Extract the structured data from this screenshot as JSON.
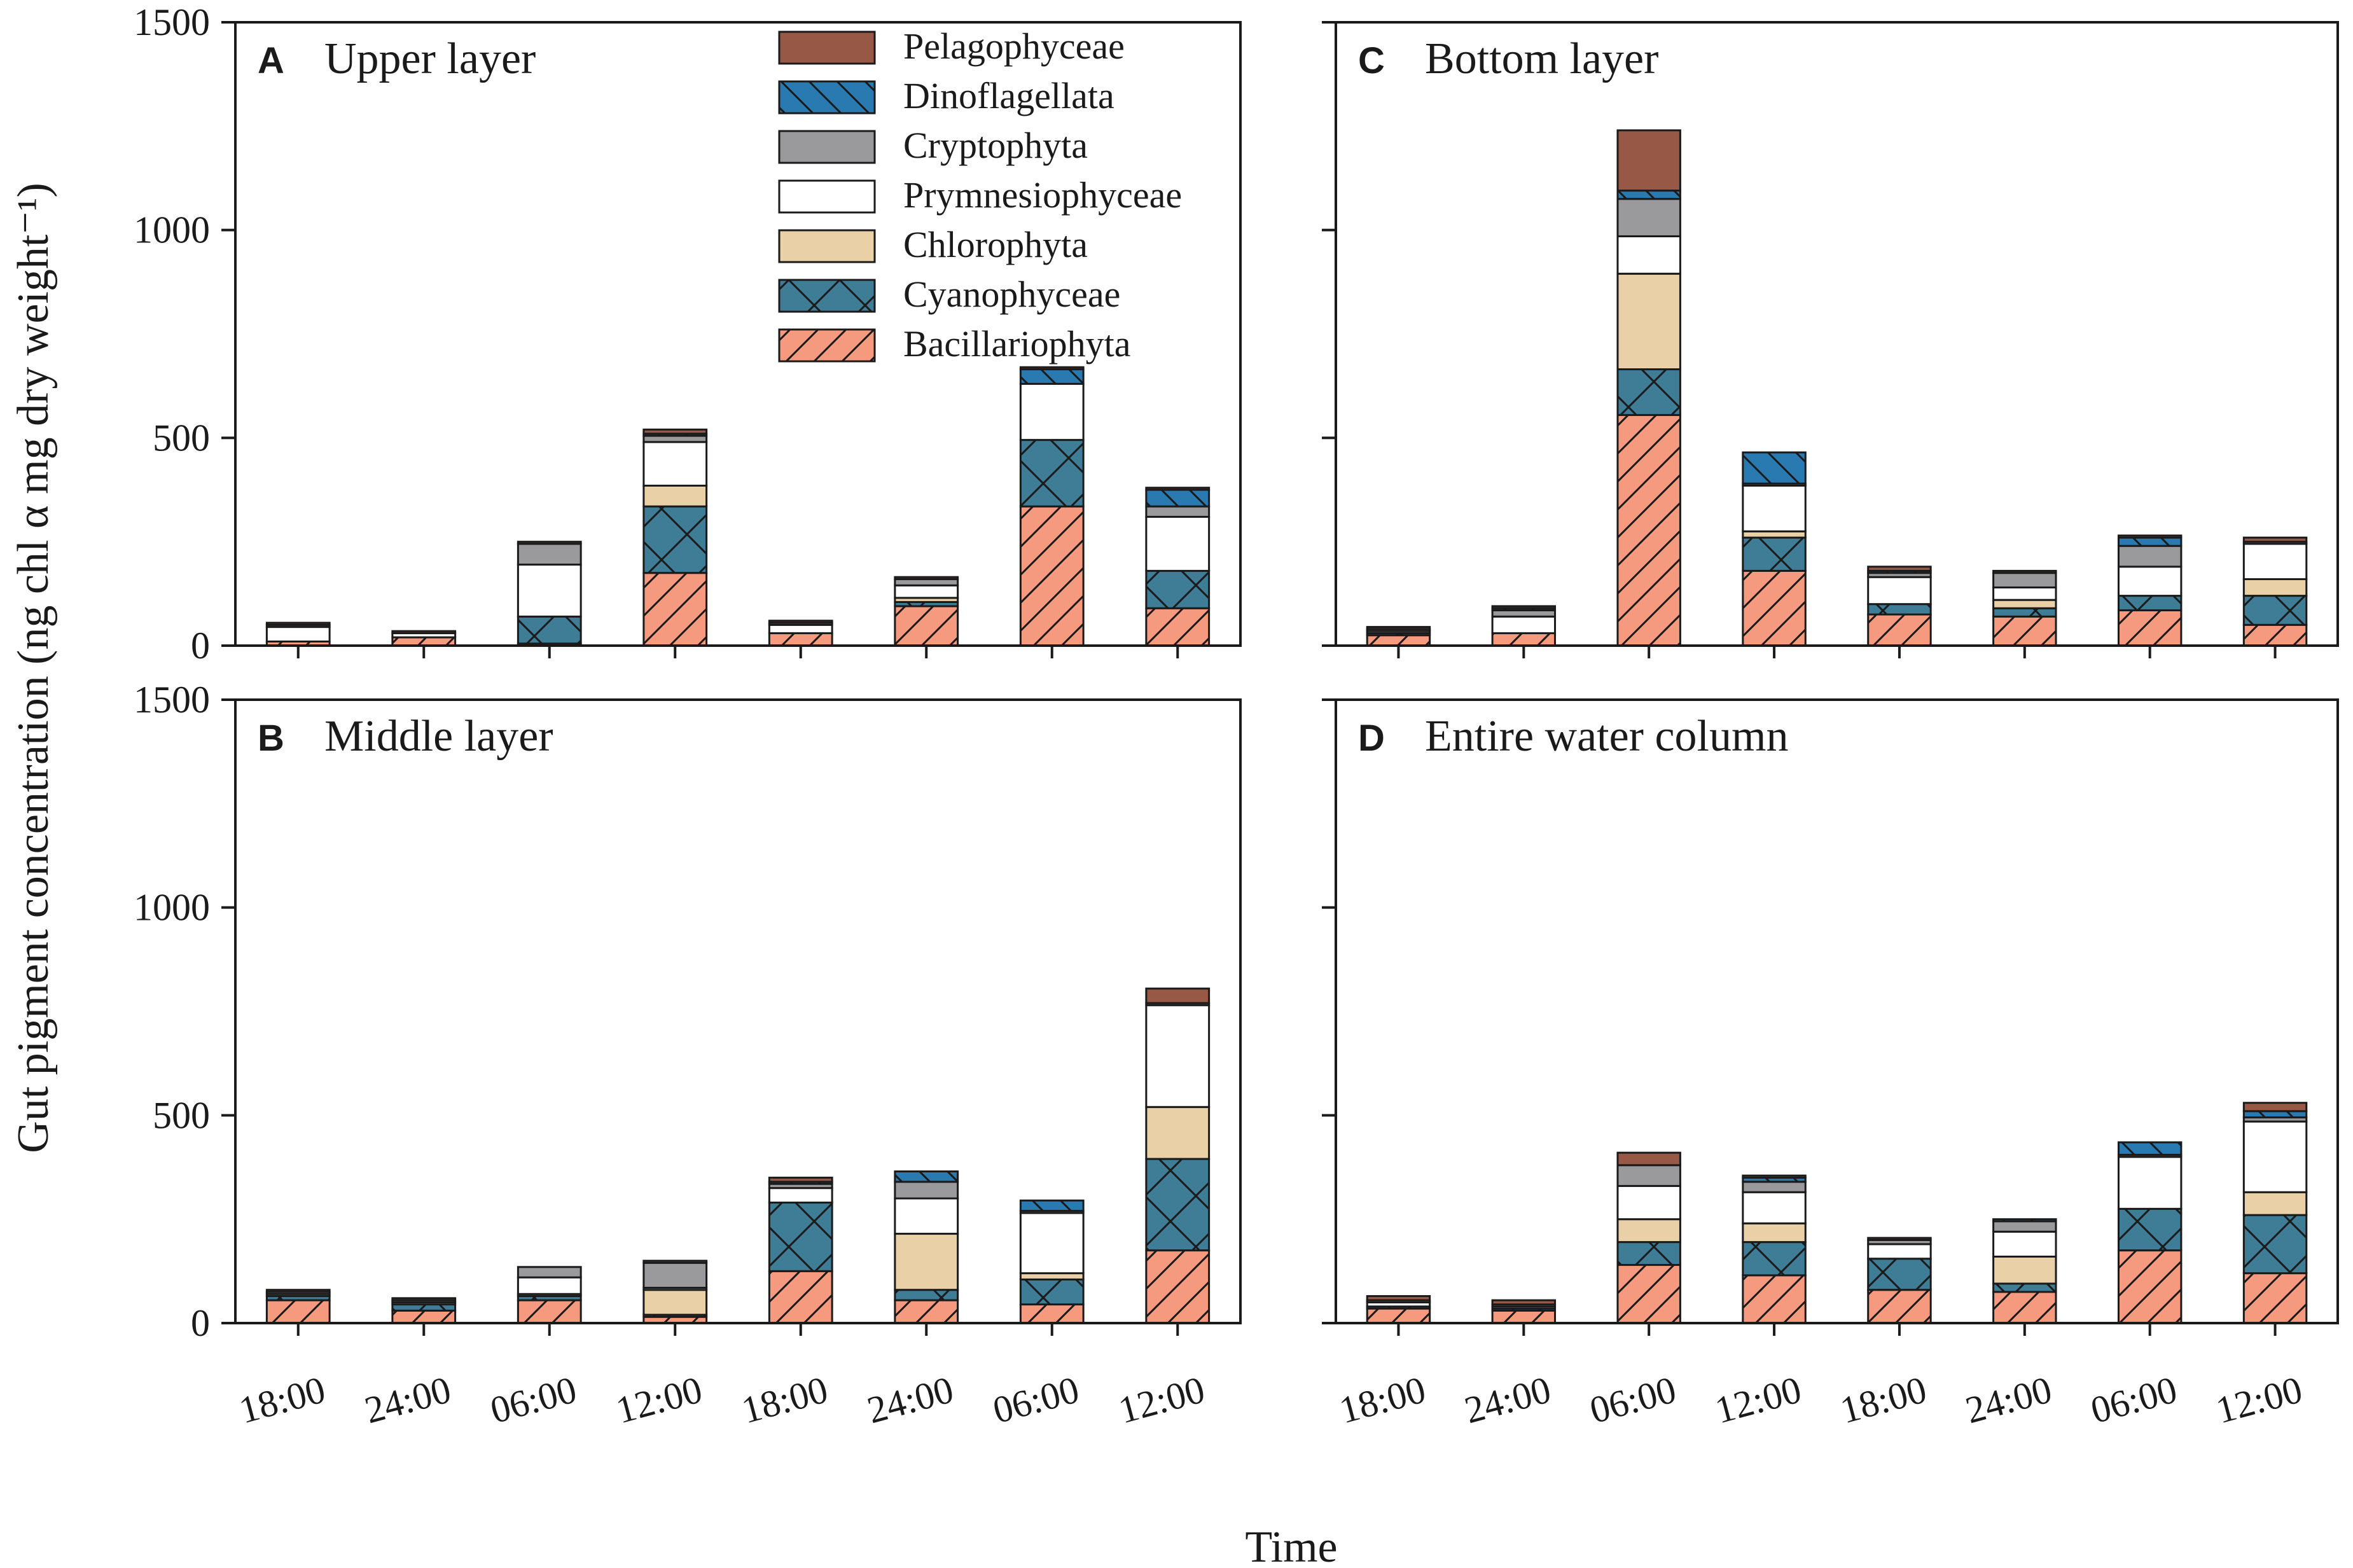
{
  "chart_data": {
    "type": "stacked-bar",
    "ylabel": "Gut pigment concentration (ng chl α mg dry weight⁻¹)",
    "xlabel": "Time",
    "ylim": [
      0,
      1500
    ],
    "yticks": [
      0,
      500,
      1000,
      1500
    ],
    "categories": [
      "18:00",
      "24:00",
      "06:00",
      "12:00",
      "18:00",
      "24:00",
      "06:00",
      "12:00"
    ],
    "series_names": [
      "Bacillariophyta",
      "Cyanophyceae",
      "Chlorophyta",
      "Prymnesiophyceae",
      "Cryptophyta",
      "Dinoflagellata",
      "Pelagophyceae"
    ],
    "legend_order": [
      "Pelagophyceae",
      "Dinoflagellata",
      "Cryptophyta",
      "Prymnesiophyceae",
      "Chlorophyta",
      "Cyanophyceae",
      "Bacillariophyta"
    ],
    "colors": {
      "Bacillariophyta": "#f59a7e",
      "Cyanophyceae": "#3f7c96",
      "Chlorophyta": "#ead0a6",
      "Prymnesiophyceae": "#ffffff",
      "Cryptophyta": "#9a9a9c",
      "Dinoflagellata": "#2a7ab2",
      "Pelagophyceae": "#975846"
    },
    "panels": [
      {
        "letter": "A",
        "title": "Upper layer",
        "series": [
          {
            "name": "Bacillariophyta",
            "values": [
              10,
              20,
              5,
              175,
              30,
              95,
              335,
              90
            ]
          },
          {
            "name": "Cyanophyceae",
            "values": [
              0,
              0,
              65,
              160,
              0,
              10,
              160,
              90
            ]
          },
          {
            "name": "Chlorophyta",
            "values": [
              0,
              0,
              0,
              50,
              0,
              10,
              0,
              0
            ]
          },
          {
            "name": "Prymnesiophyceae",
            "values": [
              35,
              10,
              125,
              105,
              20,
              30,
              135,
              130
            ]
          },
          {
            "name": "Cryptophyta",
            "values": [
              5,
              0,
              50,
              15,
              5,
              15,
              0,
              25
            ]
          },
          {
            "name": "Dinoflagellata",
            "values": [
              0,
              0,
              0,
              5,
              0,
              0,
              35,
              40
            ]
          },
          {
            "name": "Pelagophyceae",
            "values": [
              5,
              5,
              5,
              10,
              5,
              5,
              5,
              5
            ]
          }
        ]
      },
      {
        "letter": "B",
        "title": "Middle layer",
        "series": [
          {
            "name": "Bacillariophyta",
            "values": [
              55,
              30,
              55,
              15,
              125,
              55,
              45,
              175
            ]
          },
          {
            "name": "Cyanophyceae",
            "values": [
              10,
              15,
              10,
              5,
              165,
              25,
              60,
              220
            ]
          },
          {
            "name": "Chlorophyta",
            "values": [
              0,
              0,
              5,
              60,
              0,
              135,
              15,
              125
            ]
          },
          {
            "name": "Prymnesiophyceae",
            "values": [
              5,
              5,
              40,
              5,
              35,
              85,
              145,
              245
            ]
          },
          {
            "name": "Cryptophyta",
            "values": [
              5,
              5,
              25,
              60,
              10,
              40,
              5,
              5
            ]
          },
          {
            "name": "Dinoflagellata",
            "values": [
              0,
              0,
              0,
              0,
              5,
              25,
              25,
              0
            ]
          },
          {
            "name": "Pelagophyceae",
            "values": [
              5,
              5,
              0,
              5,
              10,
              0,
              0,
              35
            ]
          }
        ]
      },
      {
        "letter": "C",
        "title": "Bottom layer",
        "series": [
          {
            "name": "Bacillariophyta",
            "values": [
              25,
              30,
              555,
              180,
              75,
              70,
              85,
              50
            ]
          },
          {
            "name": "Cyanophyceae",
            "values": [
              5,
              0,
              110,
              80,
              25,
              20,
              35,
              70
            ]
          },
          {
            "name": "Chlorophyta",
            "values": [
              0,
              0,
              230,
              15,
              0,
              20,
              0,
              40
            ]
          },
          {
            "name": "Prymnesiophyceae",
            "values": [
              5,
              40,
              90,
              110,
              65,
              30,
              70,
              85
            ]
          },
          {
            "name": "Cryptophyta",
            "values": [
              5,
              15,
              90,
              5,
              10,
              35,
              50,
              5
            ]
          },
          {
            "name": "Dinoflagellata",
            "values": [
              0,
              5,
              20,
              75,
              5,
              0,
              20,
              0
            ]
          },
          {
            "name": "Pelagophyceae",
            "values": [
              5,
              5,
              145,
              0,
              10,
              5,
              5,
              10
            ]
          }
        ]
      },
      {
        "letter": "D",
        "title": "Entire water column",
        "series": [
          {
            "name": "Bacillariophyta",
            "values": [
              35,
              30,
              140,
              115,
              80,
              75,
              175,
              120
            ]
          },
          {
            "name": "Cyanophyceae",
            "values": [
              5,
              5,
              55,
              80,
              75,
              20,
              100,
              140
            ]
          },
          {
            "name": "Chlorophyta",
            "values": [
              0,
              0,
              55,
              45,
              0,
              65,
              0,
              55
            ]
          },
          {
            "name": "Prymnesiophyceae",
            "values": [
              10,
              5,
              80,
              75,
              35,
              60,
              125,
              170
            ]
          },
          {
            "name": "Cryptophyta",
            "values": [
              5,
              5,
              50,
              25,
              10,
              25,
              5,
              10
            ]
          },
          {
            "name": "Dinoflagellata",
            "values": [
              0,
              0,
              0,
              10,
              0,
              5,
              30,
              15
            ]
          },
          {
            "name": "Pelagophyceae",
            "values": [
              10,
              10,
              30,
              5,
              5,
              0,
              0,
              20
            ]
          }
        ]
      }
    ]
  }
}
